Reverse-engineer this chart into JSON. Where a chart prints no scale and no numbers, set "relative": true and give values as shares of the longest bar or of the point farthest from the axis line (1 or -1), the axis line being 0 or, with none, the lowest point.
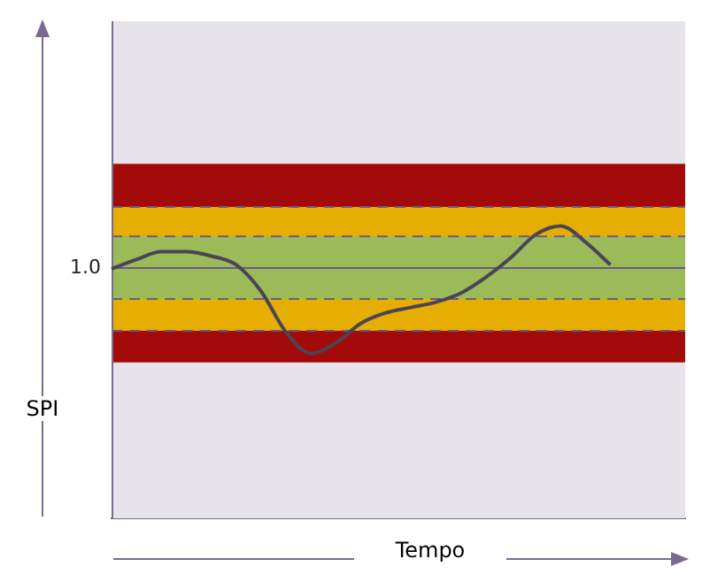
{
  "chart_data": {
    "type": "line",
    "xlabel": "Tempo",
    "ylabel": "SPI",
    "relative": true,
    "marker": "none",
    "line_style": "solid",
    "categories": [
      null,
      null,
      null,
      null,
      null,
      null,
      null,
      null,
      null,
      null,
      null,
      null,
      null,
      null,
      null,
      null,
      null,
      null,
      null,
      null,
      null,
      null,
      null,
      null
    ],
    "series": [
      {
        "color": "#4a4458",
        "values": [
          0.853,
          0.885,
          0.912,
          0.912,
          0.897,
          0.867,
          0.776,
          0.636,
          0.564,
          0.6,
          0.667,
          0.703,
          0.721,
          0.739,
          0.77,
          0.824,
          0.891,
          0.97,
          1.0,
          0.945,
          0.867,
          null,
          null,
          null
        ]
      }
    ],
    "bands": [
      {
        "axis": "y",
        "from": 0.533,
        "to": 1.212,
        "color": "#a30b0b"
      },
      {
        "axis": "y",
        "from": 0.641,
        "to": 1.065,
        "color": "#e6ae00"
      },
      {
        "axis": "y",
        "from": 0.75,
        "to": 0.964,
        "color": "#9bbb59"
      }
    ],
    "ref_lines": [
      {
        "axis": "y",
        "value": 0.856,
        "color": "#6a5a8a",
        "line_style": "solid"
      },
      {
        "axis": "y",
        "value": 1.065,
        "color": "#6a5a8a",
        "line_style": "dashed"
      },
      {
        "axis": "y",
        "value": 0.964,
        "color": "#6a5a8a",
        "line_style": "dashed"
      },
      {
        "axis": "y",
        "value": 0.75,
        "color": "#6a5a8a",
        "line_style": "dashed"
      },
      {
        "axis": "y",
        "value": 0.641,
        "color": "#6a5a8a",
        "line_style": "dashed"
      }
    ],
    "annotations": [
      "1.0"
    ]
  }
}
